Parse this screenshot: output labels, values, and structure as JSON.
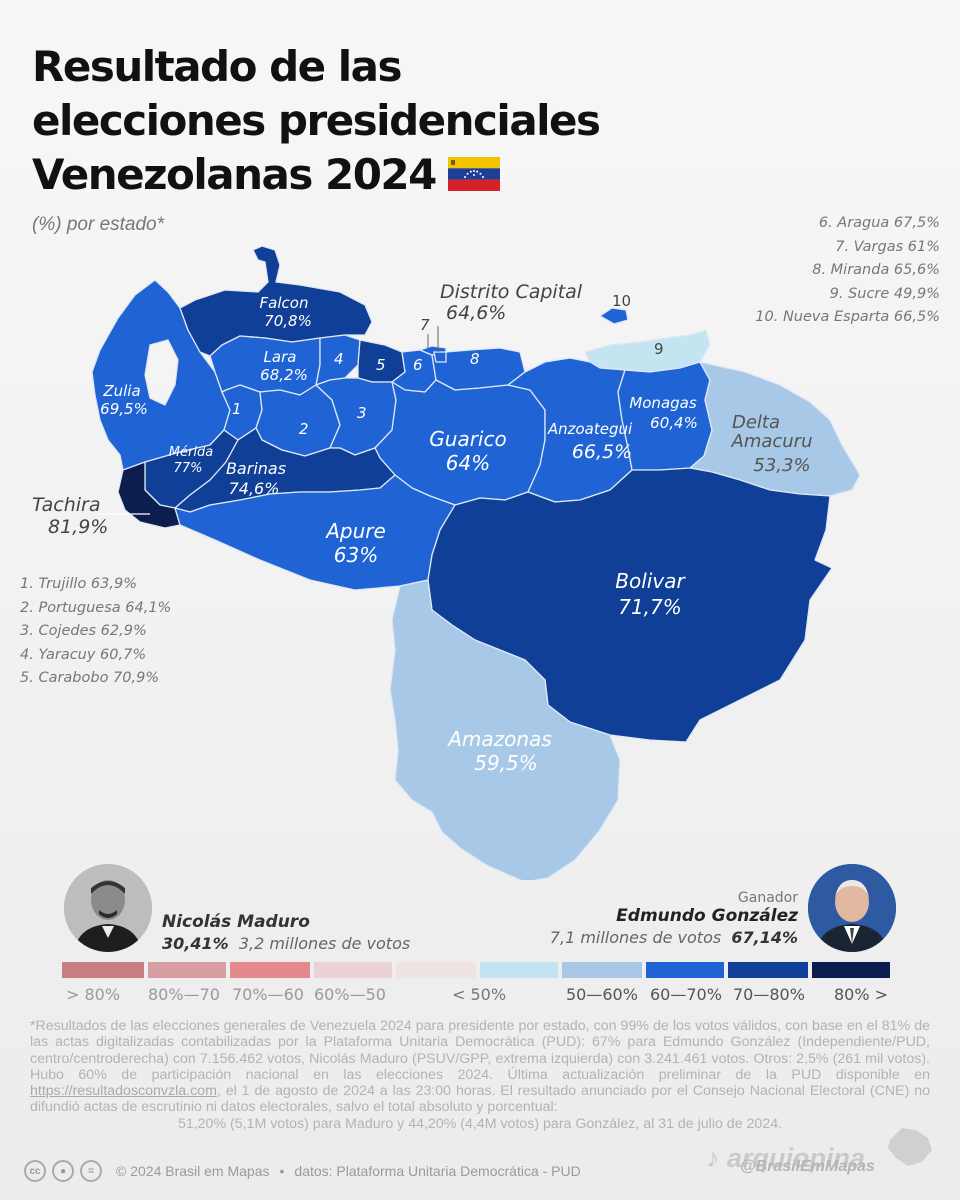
{
  "title": {
    "line1": "Resultado de las",
    "line2": "elecciones presidenciales",
    "line3": "Venezolanas 2024"
  },
  "subtitle": "(%) por estado*",
  "colors": {
    "lt50": "#c3e4f1",
    "r50_60": "#a8c8e8",
    "r60_70": "#1f63d4",
    "r70_80": "#0f3f96",
    "r80p": "#0b1e4d",
    "maduro_gt80": "#c87f83",
    "maduro_80_70": "#d89da0",
    "maduro_70_60": "#e48a8e",
    "maduro_60_50": "#ecd2d4",
    "maduro_lt50": "#f0e3e4"
  },
  "states": {
    "falcon": {
      "name": "Falcon",
      "value": "70,8%"
    },
    "lara": {
      "name": "Lara",
      "value": "68,2%"
    },
    "zulia": {
      "name": "Zulia",
      "value": "69,5%"
    },
    "merida": {
      "name": "Mérida",
      "value": "77%"
    },
    "barinas": {
      "name": "Barinas",
      "value": "74,6%"
    },
    "tachira": {
      "name": "Tachira",
      "value": "81,9%"
    },
    "apure": {
      "name": "Apure",
      "value": "63%"
    },
    "guarico": {
      "name": "Guarico",
      "value": "64%"
    },
    "anzoategui": {
      "name": "Anzoategui",
      "value": "66,5%"
    },
    "monagas": {
      "name": "Monagas",
      "value": "60,4%"
    },
    "delta": {
      "name_line1": "Delta",
      "name_line2": "Amacuru",
      "value": "53,3%"
    },
    "bolivar": {
      "name": "Bolivar",
      "value": "71,7%"
    },
    "amazonas": {
      "name": "Amazonas",
      "value": "59,5%"
    },
    "distrito": {
      "name": "Distrito Capital",
      "value": "64,6%"
    }
  },
  "map_numbers": [
    "1",
    "2",
    "3",
    "4",
    "5",
    "6",
    "7",
    "8",
    "9",
    "10"
  ],
  "list_left": [
    "1. Trujillo 63,9%",
    "2. Portuguesa 64,1%",
    "3. Cojedes 62,9%",
    "4. Yaracuy 60,7%",
    "5. Carabobo 70,9%"
  ],
  "list_right": [
    "6. Aragua 67,5%",
    "7. Vargas 61%",
    "8. Miranda 65,6%",
    "9. Sucre 49,9%",
    "10. Nueva Esparta 66,5%"
  ],
  "maduro": {
    "name": "Nicolás Maduro",
    "percent": "30,41%",
    "votes": "3,2 millones de votos"
  },
  "gonzalez": {
    "tag": "Ganador",
    "name": "Edmundo González",
    "votes": "7,1 millones de votos",
    "percent": "67,14%"
  },
  "legend": {
    "l1": "> 80%",
    "l2": "80%—70",
    "l3": "70%—60",
    "l4": "60%—50",
    "l5": "< 50%",
    "l6": "50—60%",
    "l7": "60—70%",
    "l8": "70—80%",
    "l9": "80% >"
  },
  "footnote": {
    "p1": "*Resultados de las elecciones generales de Venezuela 2024 para presidente por estado, con 99% de los votos válidos, con base en el 81% de las actas digitalizadas contabilizadas por la Plataforma Unitaria Democrática (PUD): 67% para Edmundo González (Independiente/PUD, centro/centroderecha) con 7.156.462 votos, Nicolás Maduro (PSUV/GPP, extrema izquierda) con 3.241.461 votos. Otros: 2,5% (261 mil votos). Hubo 60% de participación nacional en las elecciones 2024. Última actualización preliminar de la PUD disponible en",
    "link": "https://resultadosconvzla.com",
    "p2": ", el 1 de agosto de 2024 a las 23:00 horas. El resultado anunciado por el Consejo Nacional Electoral (CNE) no difundió actas de escrutinio ni datos electorales, salvo el total absoluto y porcentual:",
    "p3": "51,20% (5,1M votos) para Maduro y 44,20% (4,4M votos) para González, al 31 de julio de 2024."
  },
  "footer": {
    "copyright": "© 2024 Brasil em Mapas",
    "dot": "•",
    "source": "datos: Plataforma Unitaria Democrática - PUD"
  },
  "watermark": {
    "tiktok": "arquiopina",
    "handle": "@BrasilEmMapas"
  }
}
